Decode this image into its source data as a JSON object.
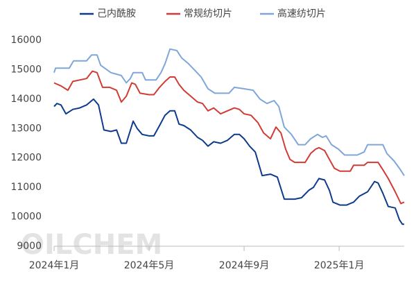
{
  "chart_data": {
    "type": "line",
    "watermark": "OILCHEM",
    "xlim": [
      0,
      14.74
    ],
    "xticks": [
      {
        "value": 0,
        "label": "2024年1月"
      },
      {
        "value": 4,
        "label": "2024年5月"
      },
      {
        "value": 8,
        "label": "2024年9月"
      },
      {
        "value": 12,
        "label": "2025年1月"
      }
    ],
    "ylim": [
      9000,
      16000
    ],
    "yticks": [
      9000,
      10000,
      11000,
      12000,
      13000,
      14000,
      15000,
      16000
    ],
    "grid": false,
    "legend": "top",
    "series": [
      {
        "name": "己内酰胺",
        "color": "#0d3a8a",
        "x": [
          0,
          0.12,
          0.29,
          0.5,
          0.79,
          1.08,
          1.37,
          1.66,
          1.87,
          2.1,
          2.39,
          2.63,
          2.83,
          3.04,
          3.33,
          3.5,
          3.71,
          4,
          4.2,
          4.44,
          4.67,
          4.88,
          5.08,
          5.26,
          5.46,
          5.75,
          6.04,
          6.25,
          6.48,
          6.72,
          7.01,
          7.3,
          7.59,
          7.8,
          8,
          8.23,
          8.47,
          8.76,
          9.11,
          9.4,
          9.69,
          10.13,
          10.42,
          10.72,
          10.92,
          11.15,
          11.39,
          11.59,
          11.74,
          12.03,
          12.32,
          12.61,
          12.85,
          13.2,
          13.49,
          13.64,
          13.84,
          14.07,
          14.36,
          14.54,
          14.66,
          14.74
        ],
        "values": [
          13750,
          13850,
          13800,
          13500,
          13650,
          13700,
          13800,
          14000,
          13800,
          12950,
          12900,
          12950,
          12500,
          12500,
          13250,
          13000,
          12800,
          12750,
          12750,
          13100,
          13450,
          13600,
          13600,
          13150,
          13100,
          12950,
          12700,
          12600,
          12400,
          12550,
          12500,
          12600,
          12800,
          12800,
          12650,
          12400,
          12200,
          11400,
          11450,
          11350,
          10600,
          10600,
          10650,
          10900,
          11000,
          11300,
          11250,
          10900,
          10500,
          10400,
          10400,
          10500,
          10700,
          10850,
          11200,
          11150,
          10800,
          10350,
          10300,
          9900,
          9750,
          9750
        ]
      },
      {
        "name": "常规纺切片",
        "color": "#d13b34",
        "x": [
          0,
          0.29,
          0.58,
          0.79,
          1.08,
          1.37,
          1.61,
          1.81,
          2.04,
          2.34,
          2.63,
          2.83,
          3.04,
          3.27,
          3.42,
          3.62,
          4,
          4.2,
          4.44,
          4.67,
          4.88,
          5.08,
          5.26,
          5.46,
          5.75,
          6.04,
          6.25,
          6.48,
          6.72,
          7.01,
          7.3,
          7.59,
          7.8,
          8,
          8.29,
          8.58,
          8.82,
          9.11,
          9.34,
          9.55,
          9.75,
          9.93,
          10.13,
          10.57,
          10.8,
          11.01,
          11.15,
          11.39,
          11.59,
          11.8,
          12.03,
          12.47,
          12.61,
          13.05,
          13.2,
          13.64,
          13.84,
          14.07,
          14.36,
          14.6,
          14.74
        ],
        "values": [
          14550,
          14450,
          14300,
          14600,
          14650,
          14700,
          14950,
          14900,
          14400,
          14400,
          14300,
          13900,
          14100,
          14550,
          14500,
          14200,
          14150,
          14150,
          14400,
          14600,
          14750,
          14750,
          14500,
          14300,
          14100,
          13900,
          13850,
          13600,
          13700,
          13500,
          13600,
          13700,
          13650,
          13500,
          13450,
          13200,
          12850,
          12650,
          13050,
          12850,
          12300,
          11950,
          11850,
          11850,
          12150,
          12300,
          12350,
          12250,
          11950,
          11650,
          11550,
          11550,
          11750,
          11750,
          11850,
          11850,
          11600,
          11300,
          10850,
          10450,
          10500
        ]
      },
      {
        "name": "高速纺切片",
        "color": "#7fa6d8",
        "x": [
          0,
          0.06,
          0.64,
          0.82,
          1.37,
          1.58,
          1.81,
          1.96,
          2.39,
          2.83,
          3.04,
          3.21,
          3.33,
          3.71,
          3.85,
          4.29,
          4.5,
          4.67,
          4.88,
          5.17,
          5.37,
          5.66,
          5.9,
          6.19,
          6.48,
          6.77,
          7.36,
          7.59,
          8,
          8.38,
          8.67,
          8.96,
          9.26,
          9.46,
          9.69,
          9.99,
          10.28,
          10.57,
          10.8,
          11.09,
          11.3,
          11.45,
          11.68,
          11.97,
          12.23,
          12.76,
          13.05,
          13.2,
          13.84,
          14.01,
          14.31,
          14.54,
          14.74
        ],
        "values": [
          14900,
          15050,
          15050,
          15300,
          15300,
          15500,
          15500,
          15150,
          14900,
          14800,
          14550,
          14700,
          14900,
          14900,
          14650,
          14650,
          14900,
          15200,
          15700,
          15650,
          15400,
          15200,
          15000,
          14750,
          14350,
          14200,
          14200,
          14400,
          14350,
          14300,
          14000,
          13850,
          13950,
          13750,
          13050,
          12800,
          12450,
          12450,
          12650,
          12800,
          12700,
          12750,
          12450,
          12300,
          12100,
          12100,
          12200,
          12450,
          12450,
          12150,
          11900,
          11650,
          11400
        ]
      }
    ]
  }
}
